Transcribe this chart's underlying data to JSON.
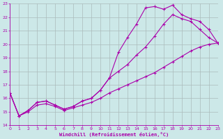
{
  "xlabel": "Windchill (Refroidissement éolien,°C)",
  "xlim": [
    0,
    23
  ],
  "ylim": [
    14,
    23
  ],
  "xticks": [
    0,
    1,
    2,
    3,
    4,
    5,
    6,
    7,
    8,
    9,
    10,
    11,
    12,
    13,
    14,
    15,
    16,
    17,
    18,
    19,
    20,
    21,
    22,
    23
  ],
  "yticks": [
    14,
    15,
    16,
    17,
    18,
    19,
    20,
    21,
    22,
    23
  ],
  "background_color": "#cce8e8",
  "line_color": "#aa00aa",
  "grid_color": "#aabbbb",
  "line1_x": [
    0,
    1,
    2,
    3,
    4,
    5,
    6,
    7,
    8,
    9,
    10,
    11,
    12,
    13,
    14,
    15,
    16,
    17,
    18,
    19,
    20,
    21,
    22,
    23
  ],
  "line1_y": [
    16.4,
    14.7,
    15.1,
    15.7,
    15.8,
    15.5,
    15.2,
    15.4,
    15.8,
    16.0,
    16.6,
    17.5,
    19.4,
    20.5,
    21.5,
    22.7,
    22.8,
    22.6,
    22.9,
    22.2,
    21.9,
    21.7,
    21.1,
    20.1
  ],
  "line2_x": [
    0,
    1,
    2,
    3,
    4,
    5,
    6,
    7,
    8,
    9,
    10,
    11,
    12,
    13,
    14,
    15,
    16,
    17,
    18,
    19,
    20,
    21,
    22,
    23
  ],
  "line2_y": [
    16.4,
    14.7,
    15.1,
    15.7,
    15.8,
    15.5,
    15.2,
    15.4,
    15.8,
    16.0,
    16.6,
    17.5,
    18.0,
    18.5,
    19.2,
    19.8,
    20.6,
    21.5,
    22.2,
    21.9,
    21.7,
    21.1,
    20.5,
    20.1
  ],
  "line3_x": [
    0,
    1,
    2,
    3,
    4,
    5,
    6,
    7,
    8,
    9,
    10,
    11,
    12,
    13,
    14,
    15,
    16,
    17,
    18,
    19,
    20,
    21,
    22,
    23
  ],
  "line3_y": [
    16.4,
    14.7,
    15.0,
    15.5,
    15.6,
    15.4,
    15.1,
    15.3,
    15.5,
    15.7,
    16.0,
    16.4,
    16.7,
    17.0,
    17.3,
    17.6,
    17.9,
    18.3,
    18.7,
    19.1,
    19.5,
    19.8,
    20.0,
    20.1
  ]
}
